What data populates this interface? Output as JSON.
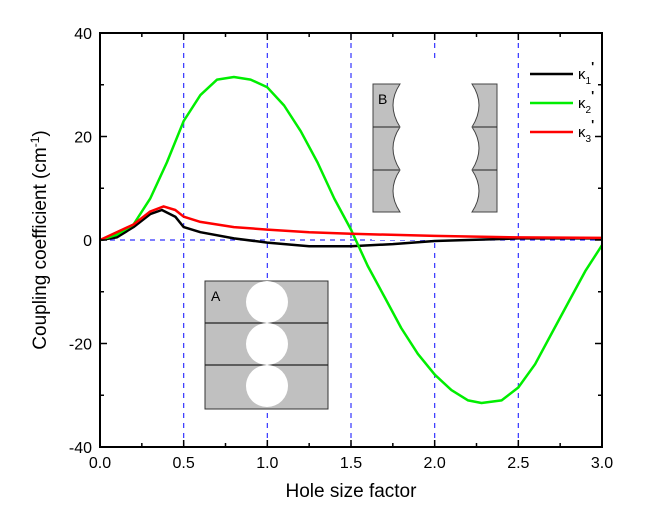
{
  "chart_data": {
    "type": "line",
    "xlabel": "Hole size factor",
    "ylabel": "Coupling coefficient (cm",
    "ylabel_sup": "-1",
    "ylabel_end": ")",
    "xlim": [
      0,
      3
    ],
    "ylim": [
      -40,
      40
    ],
    "xticks": [
      "0.0",
      "0.5",
      "1.0",
      "1.5",
      "2.0",
      "2.5",
      "3.0"
    ],
    "yticks": [
      "-40",
      "-20",
      "0",
      "20",
      "40"
    ],
    "grid": "dashed blue at x = 0.5, 1.0, 1.5, 2.0, 2.5 and y = 0",
    "legend": "top-right",
    "series": [
      {
        "name": "κ",
        "sub": "1",
        "sup": "'",
        "color": "#000000",
        "x": [
          0,
          0.1,
          0.2,
          0.3,
          0.37,
          0.45,
          0.5,
          0.6,
          0.8,
          1.0,
          1.25,
          1.5,
          1.75,
          2.0,
          2.5,
          3.0
        ],
        "y": [
          0,
          0.5,
          2.5,
          5,
          5.8,
          4.5,
          2.5,
          1.5,
          0.3,
          -0.5,
          -1.2,
          -1.2,
          -0.8,
          -0.2,
          0.3,
          0.3
        ]
      },
      {
        "name": "κ",
        "sub": "2",
        "sup": "'",
        "color": "#00ee00",
        "x": [
          0,
          0.1,
          0.2,
          0.3,
          0.4,
          0.5,
          0.6,
          0.7,
          0.8,
          0.9,
          1.0,
          1.1,
          1.2,
          1.3,
          1.4,
          1.5,
          1.6,
          1.7,
          1.8,
          1.9,
          2.0,
          2.1,
          2.2,
          2.28,
          2.4,
          2.5,
          2.6,
          2.7,
          2.8,
          2.9,
          3.0
        ],
        "y": [
          0,
          1,
          3,
          8,
          15,
          23,
          28,
          31,
          31.5,
          31,
          29.5,
          26,
          21,
          15,
          8,
          2,
          -5,
          -11,
          -17,
          -22,
          -26,
          -29,
          -31,
          -31.5,
          -31,
          -28.5,
          -24,
          -18,
          -12,
          -6,
          -1
        ]
      },
      {
        "name": "κ",
        "sub": "3",
        "sup": "'",
        "color": "#ff0000",
        "x": [
          0,
          0.2,
          0.3,
          0.38,
          0.45,
          0.5,
          0.6,
          0.8,
          1.0,
          1.25,
          1.5,
          2.0,
          2.5,
          3.0
        ],
        "y": [
          0,
          3,
          5.5,
          6.5,
          5.8,
          4.5,
          3.5,
          2.5,
          2,
          1.5,
          1.2,
          0.8,
          0.5,
          0.4
        ]
      }
    ],
    "insets": [
      {
        "label": "A"
      },
      {
        "label": "B"
      }
    ]
  }
}
